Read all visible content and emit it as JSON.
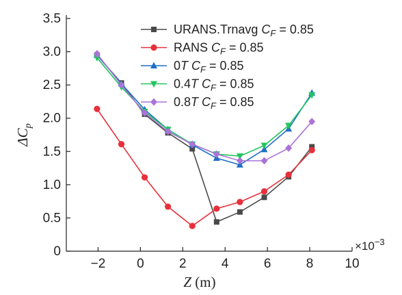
{
  "chart_data": {
    "type": "line",
    "xlabel": {
      "var": "Z",
      "unit": " (m)"
    },
    "ylabel": {
      "var": "ΔC",
      "sub": "p"
    },
    "x_multiplier": "×10",
    "x_multiplier_exp": "−3",
    "xlim": [
      -3.5,
      10
    ],
    "ylim": [
      0,
      3.5
    ],
    "xticks": [
      {
        "v": -2,
        "label": "−2"
      },
      {
        "v": 0,
        "label": "0"
      },
      {
        "v": 2,
        "label": "2"
      },
      {
        "v": 4,
        "label": "4"
      },
      {
        "v": 6,
        "label": "6"
      },
      {
        "v": 8,
        "label": "8"
      },
      {
        "v": 10,
        "label": "10"
      }
    ],
    "yticks": [
      {
        "v": 0,
        "label": "0"
      },
      {
        "v": 0.5,
        "label": "0.5"
      },
      {
        "v": 1.0,
        "label": "1.0"
      },
      {
        "v": 1.5,
        "label": "1.5"
      },
      {
        "v": 2.0,
        "label": "2.0"
      },
      {
        "v": 2.5,
        "label": "2.5"
      },
      {
        "v": 3.0,
        "label": "3.0"
      },
      {
        "v": 3.5,
        "label": "3.5"
      }
    ],
    "legend_position": "top-right",
    "series": [
      {
        "name": "URANS.Trnavg C_F = 0.85",
        "label": "URANS.Trnavg ",
        "color": "#4a4a4a",
        "marker": "square",
        "x": [
          -2.05,
          -0.9,
          0.2,
          1.3,
          2.45,
          3.6,
          4.7,
          5.85,
          7.0,
          8.1
        ],
        "y": [
          2.95,
          2.53,
          2.06,
          1.78,
          1.54,
          0.44,
          0.59,
          0.81,
          1.12,
          1.57
        ]
      },
      {
        "name": "RANS C_F = 0.85",
        "label": "RANS ",
        "color": "#e8303a",
        "marker": "circle",
        "x": [
          -2.05,
          -0.9,
          0.2,
          1.3,
          2.45,
          3.6,
          4.7,
          5.85,
          7.0,
          8.1
        ],
        "y": [
          2.14,
          1.61,
          1.11,
          0.67,
          0.38,
          0.64,
          0.74,
          0.9,
          1.15,
          1.52
        ]
      },
      {
        "name": "0T C_F = 0.85",
        "label_num": "0",
        "label": "T ",
        "color": "#1f6fc6",
        "marker": "triangle-up",
        "x": [
          -2.05,
          -0.9,
          0.2,
          1.3,
          2.45,
          3.6,
          4.7,
          5.85,
          7.0,
          8.1
        ],
        "y": [
          2.95,
          2.52,
          2.13,
          1.83,
          1.6,
          1.4,
          1.3,
          1.53,
          1.84,
          2.38
        ]
      },
      {
        "name": "0.4T C_F = 0.85",
        "label_num": "0.4",
        "label": "T ",
        "color": "#22c55e",
        "marker": "triangle-down",
        "x": [
          -2.05,
          -0.9,
          0.2,
          1.3,
          2.45,
          3.6,
          4.7,
          5.85,
          7.0,
          8.1
        ],
        "y": [
          2.91,
          2.47,
          2.1,
          1.83,
          1.61,
          1.46,
          1.43,
          1.59,
          1.89,
          2.35
        ]
      },
      {
        "name": "0.8T C_F = 0.85",
        "label_num": "0.8",
        "label": "T ",
        "color": "#a974d6",
        "marker": "diamond",
        "x": [
          -2.05,
          -0.9,
          0.2,
          1.3,
          2.45,
          3.6,
          4.7,
          5.85,
          7.0,
          8.1
        ],
        "y": [
          2.97,
          2.5,
          2.08,
          1.8,
          1.61,
          1.46,
          1.36,
          1.36,
          1.55,
          1.95
        ]
      }
    ],
    "legend_suffix": {
      "var": "C",
      "sub": "F",
      "eq": " = 0.85"
    }
  }
}
